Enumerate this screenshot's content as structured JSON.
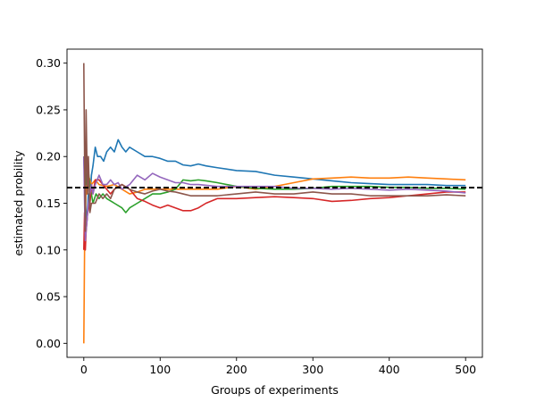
{
  "chart_data": {
    "type": "line",
    "title": "",
    "xlabel": "Groups of experiments",
    "ylabel": "estimated probility",
    "xlim": [
      -22,
      522
    ],
    "ylim": [
      -0.015,
      0.315
    ],
    "x_ticks": [
      0,
      100,
      200,
      300,
      400,
      500
    ],
    "y_ticks": [
      0.0,
      0.05,
      0.1,
      0.15,
      0.2,
      0.25,
      0.3
    ],
    "y_tick_labels": [
      "0.00",
      "0.05",
      "0.10",
      "0.15",
      "0.20",
      "0.25",
      "0.30"
    ],
    "grid": false,
    "legend": "none",
    "reference_line": {
      "y": 0.1667,
      "style": "dashed",
      "color": "#000000"
    },
    "series": [
      {
        "color": "#1f77b4",
        "points": [
          [
            0,
            0.2
          ],
          [
            2,
            0.15
          ],
          [
            4,
            0.13
          ],
          [
            6,
            0.16
          ],
          [
            8,
            0.15
          ],
          [
            10,
            0.18
          ],
          [
            12,
            0.19
          ],
          [
            15,
            0.21
          ],
          [
            18,
            0.2
          ],
          [
            22,
            0.2
          ],
          [
            26,
            0.195
          ],
          [
            30,
            0.205
          ],
          [
            35,
            0.21
          ],
          [
            40,
            0.205
          ],
          [
            45,
            0.218
          ],
          [
            50,
            0.21
          ],
          [
            55,
            0.205
          ],
          [
            60,
            0.21
          ],
          [
            70,
            0.205
          ],
          [
            80,
            0.2
          ],
          [
            90,
            0.2
          ],
          [
            100,
            0.198
          ],
          [
            110,
            0.195
          ],
          [
            120,
            0.195
          ],
          [
            130,
            0.191
          ],
          [
            140,
            0.19
          ],
          [
            150,
            0.192
          ],
          [
            160,
            0.19
          ],
          [
            175,
            0.188
          ],
          [
            200,
            0.185
          ],
          [
            225,
            0.184
          ],
          [
            250,
            0.18
          ],
          [
            275,
            0.178
          ],
          [
            300,
            0.176
          ],
          [
            325,
            0.174
          ],
          [
            350,
            0.172
          ],
          [
            375,
            0.171
          ],
          [
            400,
            0.17
          ],
          [
            425,
            0.17
          ],
          [
            450,
            0.17
          ],
          [
            475,
            0.169
          ],
          [
            500,
            0.169
          ]
        ]
      },
      {
        "color": "#ff7f0e",
        "points": [
          [
            0,
            0.0
          ],
          [
            1,
            0.1
          ],
          [
            2,
            0.13
          ],
          [
            3,
            0.17
          ],
          [
            4,
            0.16
          ],
          [
            6,
            0.18
          ],
          [
            8,
            0.175
          ],
          [
            10,
            0.17
          ],
          [
            15,
            0.175
          ],
          [
            20,
            0.17
          ],
          [
            30,
            0.168
          ],
          [
            40,
            0.17
          ],
          [
            50,
            0.165
          ],
          [
            60,
            0.16
          ],
          [
            70,
            0.162
          ],
          [
            80,
            0.165
          ],
          [
            90,
            0.165
          ],
          [
            100,
            0.165
          ],
          [
            110,
            0.165
          ],
          [
            125,
            0.165
          ],
          [
            150,
            0.165
          ],
          [
            175,
            0.165
          ],
          [
            200,
            0.168
          ],
          [
            225,
            0.165
          ],
          [
            250,
            0.168
          ],
          [
            275,
            0.172
          ],
          [
            300,
            0.176
          ],
          [
            325,
            0.177
          ],
          [
            350,
            0.178
          ],
          [
            375,
            0.177
          ],
          [
            400,
            0.177
          ],
          [
            425,
            0.178
          ],
          [
            450,
            0.177
          ],
          [
            475,
            0.176
          ],
          [
            500,
            0.175
          ]
        ]
      },
      {
        "color": "#2ca02c",
        "points": [
          [
            0,
            0.2
          ],
          [
            3,
            0.17
          ],
          [
            5,
            0.19
          ],
          [
            8,
            0.17
          ],
          [
            12,
            0.15
          ],
          [
            16,
            0.16
          ],
          [
            20,
            0.155
          ],
          [
            25,
            0.16
          ],
          [
            30,
            0.155
          ],
          [
            40,
            0.15
          ],
          [
            50,
            0.145
          ],
          [
            55,
            0.14
          ],
          [
            60,
            0.145
          ],
          [
            70,
            0.15
          ],
          [
            80,
            0.155
          ],
          [
            90,
            0.16
          ],
          [
            100,
            0.16
          ],
          [
            110,
            0.162
          ],
          [
            120,
            0.165
          ],
          [
            130,
            0.175
          ],
          [
            140,
            0.174
          ],
          [
            150,
            0.175
          ],
          [
            160,
            0.174
          ],
          [
            175,
            0.172
          ],
          [
            200,
            0.168
          ],
          [
            225,
            0.166
          ],
          [
            250,
            0.165
          ],
          [
            275,
            0.165
          ],
          [
            300,
            0.166
          ],
          [
            325,
            0.168
          ],
          [
            350,
            0.168
          ],
          [
            375,
            0.168
          ],
          [
            400,
            0.167
          ],
          [
            425,
            0.167
          ],
          [
            450,
            0.166
          ],
          [
            475,
            0.166
          ],
          [
            500,
            0.165
          ]
        ]
      },
      {
        "color": "#d62728",
        "points": [
          [
            0,
            0.1
          ],
          [
            1,
            0.14
          ],
          [
            2,
            0.1
          ],
          [
            3,
            0.12
          ],
          [
            5,
            0.14
          ],
          [
            8,
            0.15
          ],
          [
            10,
            0.17
          ],
          [
            12,
            0.16
          ],
          [
            15,
            0.175
          ],
          [
            20,
            0.175
          ],
          [
            25,
            0.17
          ],
          [
            30,
            0.165
          ],
          [
            35,
            0.16
          ],
          [
            40,
            0.165
          ],
          [
            50,
            0.17
          ],
          [
            60,
            0.165
          ],
          [
            70,
            0.155
          ],
          [
            80,
            0.152
          ],
          [
            90,
            0.148
          ],
          [
            100,
            0.145
          ],
          [
            110,
            0.148
          ],
          [
            120,
            0.145
          ],
          [
            130,
            0.142
          ],
          [
            140,
            0.142
          ],
          [
            150,
            0.145
          ],
          [
            160,
            0.15
          ],
          [
            175,
            0.155
          ],
          [
            200,
            0.155
          ],
          [
            225,
            0.156
          ],
          [
            250,
            0.157
          ],
          [
            275,
            0.156
          ],
          [
            300,
            0.155
          ],
          [
            325,
            0.152
          ],
          [
            350,
            0.153
          ],
          [
            375,
            0.155
          ],
          [
            400,
            0.156
          ],
          [
            425,
            0.158
          ],
          [
            450,
            0.16
          ],
          [
            475,
            0.162
          ],
          [
            500,
            0.162
          ]
        ]
      },
      {
        "color": "#9467bd",
        "points": [
          [
            0,
            0.2
          ],
          [
            1,
            0.15
          ],
          [
            2,
            0.11
          ],
          [
            4,
            0.13
          ],
          [
            6,
            0.15
          ],
          [
            8,
            0.16
          ],
          [
            10,
            0.17
          ],
          [
            12,
            0.16
          ],
          [
            15,
            0.17
          ],
          [
            20,
            0.18
          ],
          [
            25,
            0.17
          ],
          [
            30,
            0.17
          ],
          [
            35,
            0.175
          ],
          [
            40,
            0.17
          ],
          [
            45,
            0.172
          ],
          [
            50,
            0.165
          ],
          [
            60,
            0.17
          ],
          [
            70,
            0.18
          ],
          [
            80,
            0.175
          ],
          [
            90,
            0.182
          ],
          [
            100,
            0.178
          ],
          [
            110,
            0.175
          ],
          [
            120,
            0.172
          ],
          [
            130,
            0.172
          ],
          [
            140,
            0.17
          ],
          [
            150,
            0.17
          ],
          [
            175,
            0.168
          ],
          [
            200,
            0.168
          ],
          [
            225,
            0.168
          ],
          [
            250,
            0.168
          ],
          [
            275,
            0.166
          ],
          [
            300,
            0.166
          ],
          [
            325,
            0.165
          ],
          [
            350,
            0.166
          ],
          [
            375,
            0.165
          ],
          [
            400,
            0.164
          ],
          [
            425,
            0.165
          ],
          [
            450,
            0.164
          ],
          [
            475,
            0.163
          ],
          [
            500,
            0.161
          ]
        ]
      },
      {
        "color": "#8c564b",
        "points": [
          [
            0,
            0.3
          ],
          [
            1,
            0.2
          ],
          [
            2,
            0.12
          ],
          [
            3,
            0.25
          ],
          [
            4,
            0.2
          ],
          [
            5,
            0.16
          ],
          [
            6,
            0.2
          ],
          [
            8,
            0.14
          ],
          [
            10,
            0.15
          ],
          [
            12,
            0.15
          ],
          [
            15,
            0.15
          ],
          [
            20,
            0.16
          ],
          [
            25,
            0.155
          ],
          [
            30,
            0.16
          ],
          [
            35,
            0.155
          ],
          [
            40,
            0.165
          ],
          [
            50,
            0.17
          ],
          [
            60,
            0.165
          ],
          [
            70,
            0.162
          ],
          [
            80,
            0.16
          ],
          [
            90,
            0.163
          ],
          [
            100,
            0.165
          ],
          [
            110,
            0.163
          ],
          [
            120,
            0.162
          ],
          [
            130,
            0.16
          ],
          [
            140,
            0.158
          ],
          [
            150,
            0.158
          ],
          [
            175,
            0.158
          ],
          [
            200,
            0.16
          ],
          [
            225,
            0.162
          ],
          [
            250,
            0.16
          ],
          [
            275,
            0.16
          ],
          [
            300,
            0.162
          ],
          [
            325,
            0.16
          ],
          [
            350,
            0.16
          ],
          [
            375,
            0.158
          ],
          [
            400,
            0.158
          ],
          [
            425,
            0.158
          ],
          [
            450,
            0.158
          ],
          [
            475,
            0.159
          ],
          [
            500,
            0.158
          ]
        ]
      }
    ]
  }
}
